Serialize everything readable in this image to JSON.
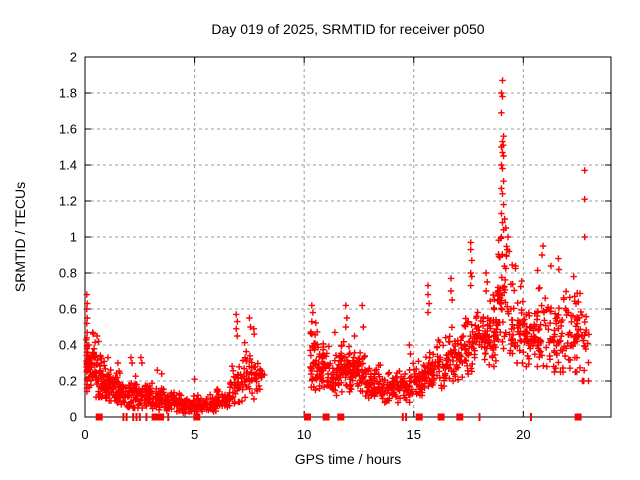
{
  "title": "Day 019 of 2025, SRMTID for receiver p050",
  "chart_data": {
    "type": "scatter",
    "title": "Day 019 of 2025, SRMTID for receiver p050",
    "xlabel": "GPS time / hours",
    "ylabel": "SRMTID / TECUs",
    "xlim": [
      0,
      24
    ],
    "ylim": [
      0,
      2
    ],
    "xticks": [
      0,
      5,
      10,
      15,
      20
    ],
    "xtick_labels": [
      "0",
      "5",
      "10",
      "15",
      "20"
    ],
    "yticks": [
      0,
      0.2,
      0.4,
      0.6,
      0.8,
      1,
      1.2,
      1.4,
      1.6,
      1.8,
      2
    ],
    "ytick_labels": [
      "0",
      "0.2",
      "0.4",
      "0.6",
      "0.8",
      "1",
      "1.2",
      "1.4",
      "1.6",
      "1.8",
      "2"
    ],
    "grid": true,
    "legend": "none",
    "marker": "plus",
    "marker_color": "#ff0000",
    "grid_color": "#9b9b9b",
    "border_color": "#000000",
    "background": "#ffffff",
    "data_gap_hours": [
      8.2,
      10.25
    ],
    "series": [
      {
        "name": "srmtid-cloud",
        "marker": "plus",
        "note": "dense scatter summarized as bins: [x_start, x_end, n_points, y_min, y_max, y_center]",
        "envelope_bins": [
          [
            0.05,
            0.5,
            60,
            0.14,
            0.48,
            0.27
          ],
          [
            0.5,
            0.9,
            48,
            0.11,
            0.42,
            0.22
          ],
          [
            0.9,
            1.3,
            48,
            0.09,
            0.3,
            0.17
          ],
          [
            1.3,
            1.8,
            50,
            0.07,
            0.26,
            0.14
          ],
          [
            1.8,
            2.4,
            52,
            0.05,
            0.24,
            0.12
          ],
          [
            2.4,
            3.0,
            48,
            0.05,
            0.21,
            0.11
          ],
          [
            3.0,
            3.6,
            46,
            0.04,
            0.19,
            0.1
          ],
          [
            3.6,
            4.4,
            58,
            0.03,
            0.15,
            0.08
          ],
          [
            4.4,
            5.2,
            62,
            0.02,
            0.13,
            0.06
          ],
          [
            5.2,
            6.0,
            55,
            0.03,
            0.13,
            0.07
          ],
          [
            6.0,
            6.6,
            40,
            0.05,
            0.17,
            0.1
          ],
          [
            6.6,
            7.2,
            36,
            0.07,
            0.3,
            0.16
          ],
          [
            7.2,
            7.7,
            32,
            0.1,
            0.42,
            0.24
          ],
          [
            7.7,
            8.2,
            28,
            0.1,
            0.38,
            0.21
          ],
          [
            10.25,
            10.6,
            36,
            0.15,
            0.55,
            0.3
          ],
          [
            10.6,
            11.0,
            36,
            0.14,
            0.45,
            0.27
          ],
          [
            11.0,
            11.6,
            46,
            0.12,
            0.4,
            0.23
          ],
          [
            11.6,
            12.1,
            50,
            0.14,
            0.42,
            0.25
          ],
          [
            12.1,
            12.8,
            56,
            0.13,
            0.38,
            0.24
          ],
          [
            12.8,
            13.5,
            56,
            0.1,
            0.3,
            0.19
          ],
          [
            13.5,
            14.2,
            56,
            0.08,
            0.26,
            0.15
          ],
          [
            14.2,
            14.9,
            50,
            0.08,
            0.28,
            0.16
          ],
          [
            14.9,
            15.5,
            46,
            0.12,
            0.32,
            0.2
          ],
          [
            15.5,
            16.0,
            40,
            0.14,
            0.38,
            0.24
          ],
          [
            16.0,
            16.6,
            40,
            0.16,
            0.45,
            0.29
          ],
          [
            16.6,
            17.2,
            40,
            0.2,
            0.5,
            0.32
          ],
          [
            17.2,
            17.8,
            46,
            0.22,
            0.6,
            0.38
          ],
          [
            17.8,
            18.4,
            46,
            0.25,
            0.62,
            0.42
          ],
          [
            18.4,
            18.8,
            40,
            0.28,
            0.68,
            0.45
          ],
          [
            18.8,
            19.3,
            52,
            0.38,
            1.1,
            0.65
          ],
          [
            19.3,
            20.0,
            52,
            0.3,
            0.85,
            0.48
          ],
          [
            20.0,
            20.6,
            46,
            0.28,
            0.62,
            0.42
          ],
          [
            20.6,
            21.3,
            46,
            0.28,
            0.88,
            0.46
          ],
          [
            21.3,
            22.0,
            46,
            0.25,
            0.82,
            0.44
          ],
          [
            22.0,
            22.6,
            46,
            0.25,
            0.78,
            0.44
          ],
          [
            22.6,
            23.0,
            22,
            0.2,
            0.7,
            0.38
          ]
        ],
        "extreme_points": [
          [
            0.08,
            0.68
          ],
          [
            0.1,
            0.63
          ],
          [
            0.08,
            0.6
          ],
          [
            0.1,
            0.55
          ],
          [
            0.08,
            0.52
          ],
          [
            0.1,
            0.47
          ],
          [
            0.08,
            0.44
          ],
          [
            0.1,
            0.4
          ],
          [
            0.08,
            0.36
          ],
          [
            0.09,
            0.3
          ],
          [
            0.08,
            0.25
          ],
          [
            0.1,
            0.2
          ],
          [
            0.08,
            0.16
          ],
          [
            0.35,
            0.47
          ],
          [
            0.55,
            0.45
          ],
          [
            0.62,
            0.42
          ],
          [
            1.05,
            0.33
          ],
          [
            1.5,
            0.3
          ],
          [
            2.1,
            0.33
          ],
          [
            2.15,
            0.3
          ],
          [
            2.55,
            0.33
          ],
          [
            2.6,
            0.3
          ],
          [
            3.3,
            0.26
          ],
          [
            3.5,
            0.24
          ],
          [
            5.0,
            0.21
          ],
          [
            6.9,
            0.57
          ],
          [
            6.95,
            0.53
          ],
          [
            6.9,
            0.49
          ],
          [
            6.95,
            0.45
          ],
          [
            7.5,
            0.55
          ],
          [
            7.55,
            0.5
          ],
          [
            7.7,
            0.49
          ],
          [
            7.72,
            0.46
          ],
          [
            10.35,
            0.62
          ],
          [
            10.4,
            0.58
          ],
          [
            10.35,
            0.53
          ],
          [
            11.4,
            0.47
          ],
          [
            11.9,
            0.62
          ],
          [
            11.95,
            0.55
          ],
          [
            11.9,
            0.5
          ],
          [
            12.65,
            0.62
          ],
          [
            12.7,
            0.5
          ],
          [
            12.3,
            0.45
          ],
          [
            14.8,
            0.4
          ],
          [
            14.85,
            0.35
          ],
          [
            15.65,
            0.73
          ],
          [
            15.65,
            0.68
          ],
          [
            15.7,
            0.63
          ],
          [
            15.65,
            0.58
          ],
          [
            16.7,
            0.77
          ],
          [
            16.7,
            0.7
          ],
          [
            16.75,
            0.65
          ],
          [
            17.6,
            0.97
          ],
          [
            17.6,
            0.93
          ],
          [
            17.65,
            0.87
          ],
          [
            17.6,
            0.8
          ],
          [
            17.65,
            0.78
          ],
          [
            17.6,
            0.73
          ],
          [
            18.3,
            0.8
          ],
          [
            18.35,
            0.75
          ],
          [
            18.3,
            0.7
          ],
          [
            19.05,
            1.87
          ],
          [
            19.0,
            1.8
          ],
          [
            19.05,
            1.78
          ],
          [
            19.0,
            1.69
          ],
          [
            19.1,
            1.56
          ],
          [
            19.05,
            1.53
          ],
          [
            19.08,
            1.51
          ],
          [
            19.0,
            1.5
          ],
          [
            19.05,
            1.47
          ],
          [
            19.1,
            1.45
          ],
          [
            19.0,
            1.4
          ],
          [
            19.05,
            1.38
          ],
          [
            19.1,
            1.31
          ],
          [
            19.0,
            1.27
          ],
          [
            19.05,
            1.24
          ],
          [
            19.1,
            1.18
          ],
          [
            19.0,
            1.13
          ],
          [
            19.05,
            1.08
          ],
          [
            19.1,
            1.04
          ],
          [
            19.0,
            1.0
          ],
          [
            19.15,
            1.1
          ],
          [
            19.2,
            1.05
          ],
          [
            19.3,
            1.0
          ],
          [
            19.35,
            0.92
          ],
          [
            20.9,
            0.95
          ],
          [
            20.85,
            0.9
          ],
          [
            21.6,
            0.88
          ],
          [
            22.3,
            0.78
          ],
          [
            22.8,
            1.37
          ],
          [
            22.8,
            1.21
          ],
          [
            22.8,
            1.0
          ]
        ]
      },
      {
        "name": "axis-flag-squares",
        "marker": "filled-square",
        "y": 0,
        "x": [
          0.65,
          3.2,
          3.45,
          5.1,
          10.15,
          11.0,
          11.67,
          15.25,
          16.25,
          17.1,
          22.5
        ]
      },
      {
        "name": "axis-flag-ticks",
        "marker": "vtick",
        "y": 0,
        "x": [
          1.75,
          1.9,
          2.2,
          2.35,
          2.5,
          2.8,
          3.8,
          14.5,
          14.65,
          18.0,
          20.35
        ]
      }
    ]
  }
}
